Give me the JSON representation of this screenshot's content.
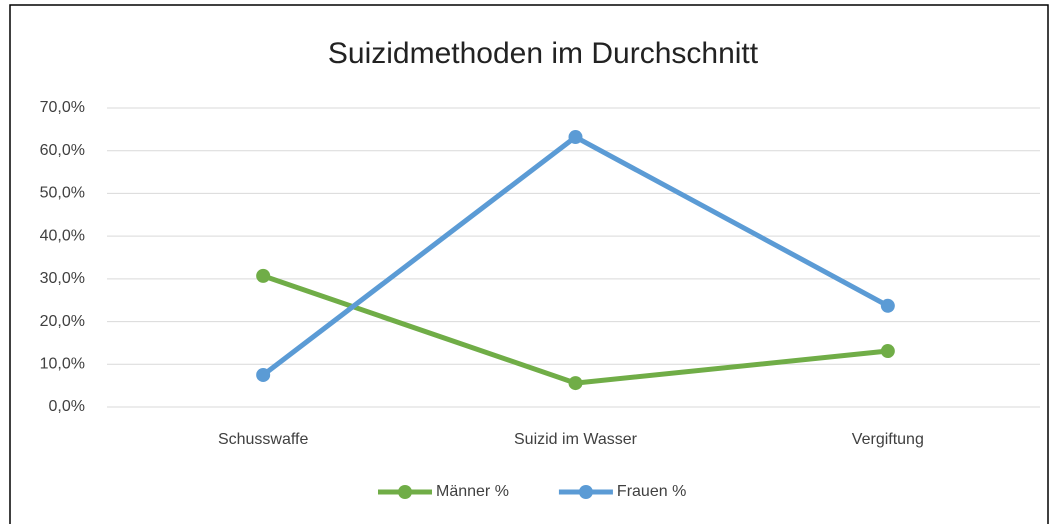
{
  "chart_data": {
    "type": "line",
    "title": "Suizidmethoden im Durchschnitt",
    "categories": [
      "Schusswaffe",
      "Suizid im Wasser",
      "Vergiftung"
    ],
    "series": [
      {
        "name": "Männer %",
        "color": "#70ad47",
        "values": [
          30.7,
          5.6,
          13.1
        ]
      },
      {
        "name": "Frauen %",
        "color": "#5b9bd5",
        "values": [
          7.5,
          63.2,
          23.7
        ]
      }
    ],
    "ylim": [
      0,
      70
    ],
    "yticks": [
      {
        "value": 0,
        "label": "0,0%"
      },
      {
        "value": 10,
        "label": "10,0%"
      },
      {
        "value": 20,
        "label": "20,0%"
      },
      {
        "value": 30,
        "label": "30,0%"
      },
      {
        "value": 40,
        "label": "40,0%"
      },
      {
        "value": 50,
        "label": "50,0%"
      },
      {
        "value": 60,
        "label": "60,0%"
      },
      {
        "value": 70,
        "label": "70,0%"
      }
    ],
    "grid": true,
    "legend": "bottom"
  }
}
